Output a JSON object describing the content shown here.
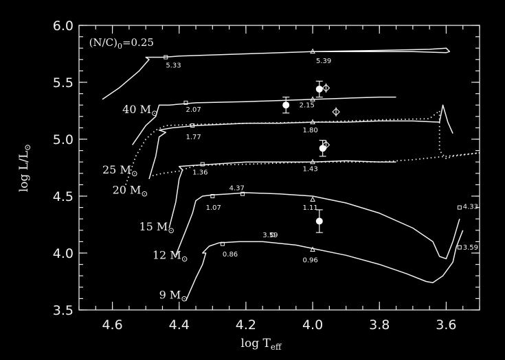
{
  "chart_data": {
    "type": "line",
    "xlabel": "log T",
    "xlabel_sub": "eff",
    "ylabel": "log L/L",
    "ylabel_sub": "⊙",
    "xlim": [
      4.7,
      3.5
    ],
    "ylim": [
      3.5,
      6.0
    ],
    "x_reversed": true,
    "x_ticks": [
      "4.6",
      "4.4",
      "4.2",
      "4.0",
      "3.8",
      "3.6"
    ],
    "x_tick_values": [
      4.6,
      4.4,
      4.2,
      4.0,
      3.8,
      3.6
    ],
    "y_ticks": [
      "3.5",
      "4.0",
      "4.5",
      "5.0",
      "5.5",
      "6.0"
    ],
    "y_tick_values": [
      3.5,
      4.0,
      4.5,
      5.0,
      5.5,
      6.0
    ],
    "annotation": {
      "pre": "(N/C)",
      "sub": "0",
      "post": "=0.25",
      "x": 4.67,
      "y": 5.82
    },
    "series": [
      {
        "mass_label": "9 M",
        "mass_sub": "⊙",
        "label_x": 4.46,
        "label_y": 3.6,
        "points": [
          [
            4.38,
            3.58
          ],
          [
            4.35,
            3.78
          ],
          [
            4.33,
            3.9
          ],
          [
            4.32,
            4.0
          ],
          [
            4.33,
            4.0
          ],
          [
            4.31,
            4.06
          ],
          [
            4.28,
            4.09
          ],
          [
            4.22,
            4.1
          ],
          [
            4.15,
            4.1
          ],
          [
            4.05,
            4.07
          ],
          [
            4.0,
            4.04
          ],
          [
            3.9,
            3.98
          ],
          [
            3.8,
            3.9
          ],
          [
            3.72,
            3.82
          ],
          [
            3.66,
            3.75
          ],
          [
            3.64,
            3.74
          ],
          [
            3.61,
            3.8
          ],
          [
            3.58,
            3.92
          ],
          [
            3.57,
            4.05
          ],
          [
            3.55,
            4.2
          ]
        ]
      },
      {
        "mass_label": "12 M",
        "mass_sub": "⊙",
        "label_x": 4.48,
        "label_y": 3.95,
        "points": [
          [
            4.41,
            3.98
          ],
          [
            4.38,
            4.2
          ],
          [
            4.36,
            4.35
          ],
          [
            4.35,
            4.46
          ],
          [
            4.33,
            4.5
          ],
          [
            4.3,
            4.51
          ],
          [
            4.25,
            4.52
          ],
          [
            4.2,
            4.53
          ],
          [
            4.1,
            4.52
          ],
          [
            4.0,
            4.5
          ],
          [
            3.9,
            4.44
          ],
          [
            3.8,
            4.35
          ],
          [
            3.7,
            4.22
          ],
          [
            3.64,
            4.1
          ],
          [
            3.62,
            3.97
          ],
          [
            3.6,
            3.95
          ],
          [
            3.58,
            4.1
          ],
          [
            3.56,
            4.3
          ]
        ]
      },
      {
        "mass_label": "15 M",
        "mass_sub": "⊙",
        "label_x": 4.52,
        "label_y": 4.2,
        "points": [
          [
            4.43,
            4.22
          ],
          [
            4.41,
            4.45
          ],
          [
            4.4,
            4.65
          ],
          [
            4.39,
            4.73
          ],
          [
            4.4,
            4.76
          ],
          [
            4.36,
            4.77
          ],
          [
            4.3,
            4.78
          ],
          [
            4.2,
            4.8
          ],
          [
            4.1,
            4.8
          ],
          [
            4.0,
            4.8
          ],
          [
            3.9,
            4.81
          ],
          [
            3.8,
            4.8
          ],
          [
            3.75,
            4.8
          ]
        ]
      },
      {
        "mass_label": "20 M",
        "mass_sub": "⊙",
        "label_x": 4.6,
        "label_y": 4.52,
        "points": [
          [
            4.49,
            4.65
          ],
          [
            4.47,
            4.85
          ],
          [
            4.46,
            5.02
          ],
          [
            4.44,
            5.06
          ],
          [
            4.46,
            5.08
          ],
          [
            4.42,
            5.1
          ],
          [
            4.35,
            5.12
          ],
          [
            4.2,
            5.14
          ],
          [
            4.1,
            5.14
          ],
          [
            4.0,
            5.15
          ],
          [
            3.9,
            5.15
          ],
          [
            3.8,
            5.16
          ],
          [
            3.7,
            5.16
          ],
          [
            3.62,
            5.15
          ],
          [
            3.61,
            5.3
          ],
          [
            3.595,
            5.15
          ],
          [
            3.58,
            5.05
          ]
        ]
      },
      {
        "mass_label": "25 M",
        "mass_sub": "⊙",
        "label_x": 4.63,
        "label_y": 4.7,
        "dotted": true,
        "points": [
          [
            4.56,
            4.6
          ],
          [
            4.53,
            4.85
          ],
          [
            4.5,
            5.0
          ],
          [
            4.47,
            5.08
          ],
          [
            4.44,
            5.12
          ],
          [
            4.35,
            5.13
          ],
          [
            4.2,
            5.14
          ],
          [
            4.0,
            5.15
          ],
          [
            3.8,
            5.17
          ],
          [
            3.65,
            5.18
          ],
          [
            3.62,
            5.25
          ],
          [
            3.62,
            4.9
          ],
          [
            3.6,
            4.83
          ],
          [
            3.58,
            4.85
          ],
          [
            3.5,
            4.88
          ],
          [
            3.7,
            4.82
          ],
          [
            3.8,
            4.8
          ],
          [
            4.0,
            4.8
          ],
          [
            4.2,
            4.78
          ],
          [
            4.35,
            4.77
          ],
          [
            4.4,
            4.72
          ],
          [
            4.45,
            4.7
          ],
          [
            4.48,
            4.68
          ]
        ]
      },
      {
        "mass_label": "40 M",
        "mass_sub": "⊙",
        "label_x": 4.57,
        "label_y": 5.23,
        "points": [
          [
            4.54,
            4.95
          ],
          [
            4.5,
            5.12
          ],
          [
            4.47,
            5.2
          ],
          [
            4.46,
            5.3
          ],
          [
            4.43,
            5.3
          ],
          [
            4.35,
            5.32
          ],
          [
            4.2,
            5.33
          ],
          [
            4.1,
            5.34
          ],
          [
            4.0,
            5.35
          ],
          [
            3.9,
            5.36
          ],
          [
            3.8,
            5.37
          ],
          [
            3.75,
            5.37
          ]
        ]
      },
      {
        "mass_label": "",
        "mass_sub": "",
        "label_x": 0,
        "label_y": 0,
        "points": [
          [
            4.63,
            5.35
          ],
          [
            4.58,
            5.45
          ],
          [
            4.52,
            5.6
          ],
          [
            4.49,
            5.7
          ],
          [
            4.5,
            5.72
          ],
          [
            4.45,
            5.72
          ],
          [
            4.4,
            5.73
          ],
          [
            4.2,
            5.75
          ],
          [
            4.0,
            5.77
          ],
          [
            3.8,
            5.78
          ],
          [
            3.65,
            5.79
          ],
          [
            3.6,
            5.8
          ],
          [
            3.59,
            5.77
          ],
          [
            3.6,
            5.76
          ],
          [
            3.7,
            5.77
          ],
          [
            3.8,
            5.77
          ],
          [
            4.0,
            5.77
          ]
        ]
      }
    ],
    "age_labels": [
      {
        "text": "5.33",
        "x": 4.44,
        "y": 5.63,
        "mx": 4.44,
        "my": 5.72,
        "shape": "square"
      },
      {
        "text": "5.39",
        "x": 3.99,
        "y": 5.67,
        "mx": 4.0,
        "my": 5.77,
        "shape": "triangle"
      },
      {
        "text": "2.07",
        "x": 4.38,
        "y": 5.24,
        "mx": 4.38,
        "my": 5.32,
        "shape": "square"
      },
      {
        "text": "2.15",
        "x": 4.04,
        "y": 5.28,
        "mx": 4.0,
        "my": 5.35,
        "shape": "triangle"
      },
      {
        "text": "1.77",
        "x": 4.38,
        "y": 5.0,
        "mx": 4.36,
        "my": 5.12,
        "shape": "square"
      },
      {
        "text": "1.80",
        "x": 4.03,
        "y": 5.06,
        "mx": 4.0,
        "my": 5.15,
        "shape": "triangle"
      },
      {
        "text": "1.36",
        "x": 4.36,
        "y": 4.69,
        "mx": 4.33,
        "my": 4.78,
        "shape": "square"
      },
      {
        "text": "1.43",
        "x": 4.03,
        "y": 4.72,
        "mx": 4.0,
        "my": 4.8,
        "shape": "triangle"
      },
      {
        "text": "4.37",
        "x": 4.25,
        "y": 4.55,
        "mx": 4.21,
        "my": 4.52,
        "shape": "square"
      },
      {
        "text": "1.07",
        "x": 4.32,
        "y": 4.38,
        "mx": 4.3,
        "my": 4.5,
        "shape": "square"
      },
      {
        "text": "1.11",
        "x": 4.03,
        "y": 4.38,
        "mx": 4.0,
        "my": 4.47,
        "shape": "triangle"
      },
      {
        "text": "4.33",
        "x": 3.55,
        "y": 4.39,
        "mx": 3.56,
        "my": 4.4,
        "shape": "square"
      },
      {
        "text": "3.59",
        "x": 4.15,
        "y": 4.14,
        "mx": 4.12,
        "my": 4.16,
        "shape": "square"
      },
      {
        "text": "0.86",
        "x": 4.27,
        "y": 3.97,
        "mx": 4.27,
        "my": 4.08,
        "shape": "square"
      },
      {
        "text": "0.96",
        "x": 4.03,
        "y": 3.92,
        "mx": 4.0,
        "my": 4.03,
        "shape": "triangle"
      },
      {
        "text": "3.59",
        "x": 3.55,
        "y": 4.03,
        "mx": 3.56,
        "my": 4.05,
        "shape": "square"
      }
    ],
    "observations": [
      {
        "x": 3.98,
        "y": 5.44,
        "err": 0.07
      },
      {
        "x": 4.08,
        "y": 5.3,
        "err": 0.07
      },
      {
        "x": 3.97,
        "y": 4.92,
        "err": 0.07
      },
      {
        "x": 3.98,
        "y": 4.28,
        "err": 0.1
      }
    ],
    "diamonds": [
      {
        "x": 3.96,
        "y": 5.45,
        "err": 0.04
      },
      {
        "x": 3.93,
        "y": 5.24,
        "err": 0.04
      },
      {
        "x": 3.96,
        "y": 4.95,
        "err": 0.04
      }
    ]
  }
}
